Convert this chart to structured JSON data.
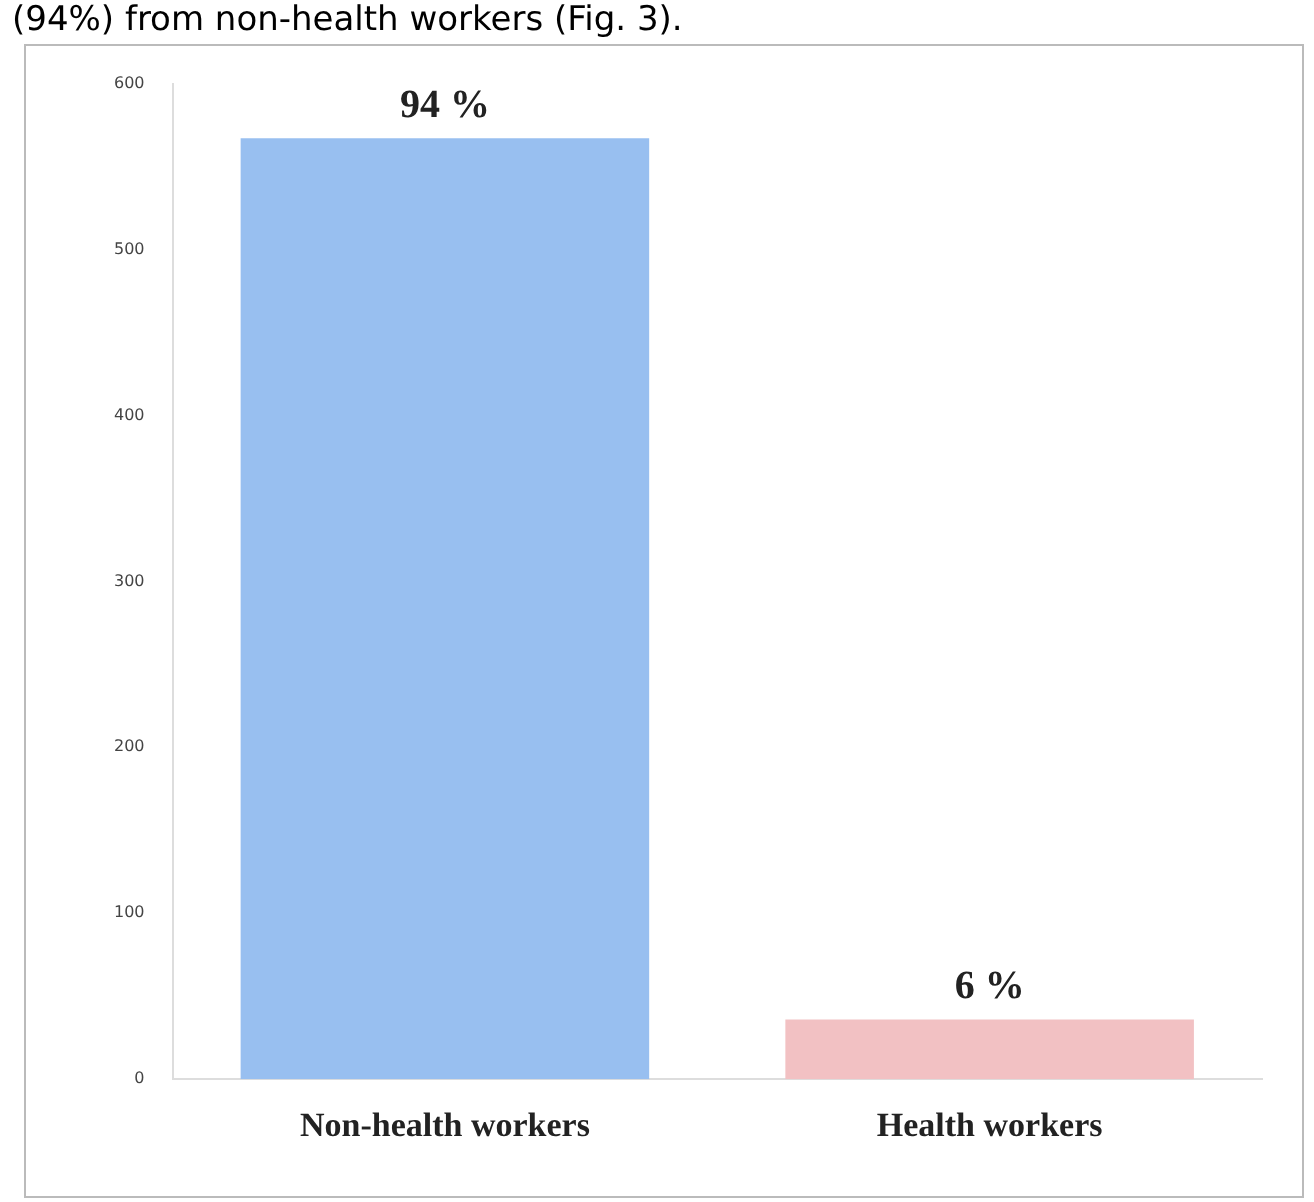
{
  "chart_data": {
    "type": "bar",
    "categories": [
      "Non-health workers",
      "Health workers"
    ],
    "colors": [
      "#98bff0",
      "#f2c1c3"
    ],
    "values": [
      567,
      36
    ],
    "ylim": [
      0,
      600
    ],
    "yticks": [
      0,
      100,
      200,
      300,
      400,
      500,
      600
    ],
    "grid": false,
    "legend": false,
    "annotations": [
      "(94%) from non-health workers (Fig. 3).",
      {
        "text": "94 %",
        "x": "Non-health workers",
        "y": 567
      },
      {
        "text": "6 %",
        "x": "Health workers",
        "y": 36
      }
    ]
  }
}
